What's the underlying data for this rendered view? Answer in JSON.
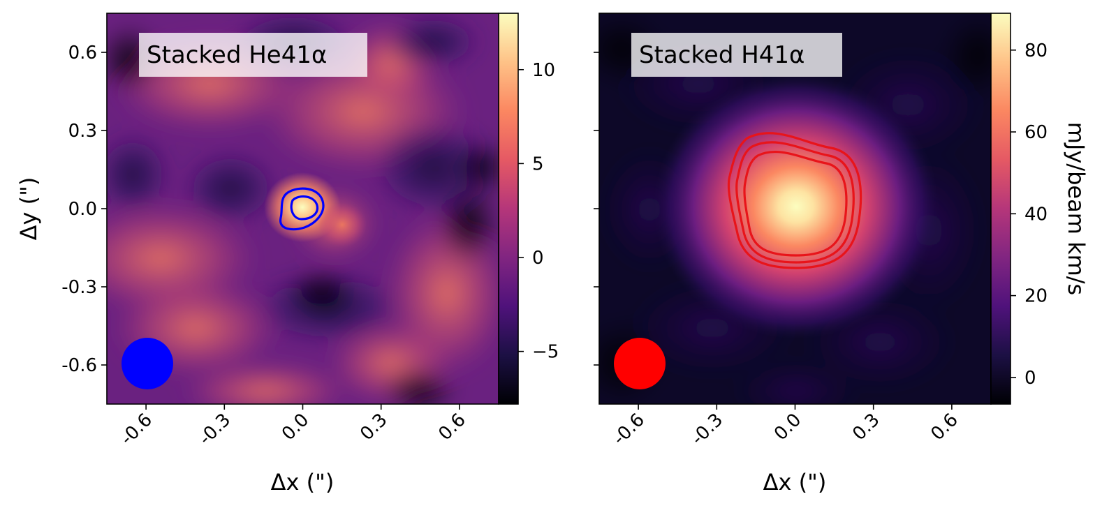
{
  "figure": {
    "ylabel": "Δy (\")",
    "colorbar_label": "mJy/beam km/s",
    "colormap": "magma",
    "colormap_stops": [
      "#000004",
      "#1c1044",
      "#4f127b",
      "#812581",
      "#b5367a",
      "#e55964",
      "#fb8761",
      "#fec287",
      "#fcfdbf"
    ]
  },
  "chart_data": [
    {
      "type": "heatmap",
      "title": "Stacked He41α",
      "xlabel": "Δx (\")",
      "ylabel": "Δy (\")",
      "xlim": [
        -0.75,
        0.75
      ],
      "ylim": [
        -0.75,
        0.75
      ],
      "xticks": [
        -0.6,
        -0.3,
        0.0,
        0.3,
        0.6
      ],
      "xtick_labels": [
        "-0.6",
        "-0.3",
        "0.0",
        "0.3",
        "0.6"
      ],
      "yticks": [
        0.6,
        0.3,
        0.0,
        -0.3,
        -0.6
      ],
      "ytick_labels": [
        "0.6",
        "0.3",
        "0.0",
        "-0.3",
        "-0.6"
      ],
      "colorbar": {
        "range": [
          -7.8,
          13
        ],
        "ticks": [
          10,
          5,
          0,
          -5
        ],
        "tick_labels": [
          "10",
          "5",
          "0",
          "−5"
        ]
      },
      "peak": {
        "x": 0.0,
        "y": 0.0,
        "value": 12.5
      },
      "secondary_peaks": [
        {
          "x": 0.15,
          "y": -0.06,
          "value": 7
        },
        {
          "x": 0.67,
          "y": -0.47,
          "value": 7
        },
        {
          "x": 0.33,
          "y": 0.57,
          "value": 5
        },
        {
          "x": -0.55,
          "y": -0.15,
          "value": 5
        }
      ],
      "contours": {
        "color": "#0000ff",
        "levels": 2
      },
      "beam": {
        "x": -0.6,
        "y": -0.6,
        "color": "#0000ff"
      },
      "grid": false
    },
    {
      "type": "heatmap",
      "title": "Stacked H41α",
      "xlabel": "Δx (\")",
      "xlim": [
        -0.75,
        0.75
      ],
      "ylim": [
        -0.75,
        0.75
      ],
      "xticks": [
        -0.6,
        -0.3,
        0.0,
        0.3,
        0.6
      ],
      "xtick_labels": [
        "-0.6",
        "-0.3",
        "0.0",
        "0.3",
        "0.6"
      ],
      "yticks": [
        0.6,
        0.3,
        0.0,
        -0.3,
        -0.6
      ],
      "colorbar": {
        "range": [
          -6.5,
          89
        ],
        "ticks": [
          80,
          60,
          40,
          20,
          0
        ],
        "tick_labels": [
          "80",
          "60",
          "40",
          "20",
          "0"
        ],
        "label": "mJy/beam km/s"
      },
      "peak": {
        "x": 0.02,
        "y": 0.0,
        "value": 88
      },
      "contours": {
        "color": "#e8141a",
        "levels": 3
      },
      "beam": {
        "x": -0.6,
        "y": -0.6,
        "color": "#ff0000"
      },
      "grid": false
    }
  ]
}
